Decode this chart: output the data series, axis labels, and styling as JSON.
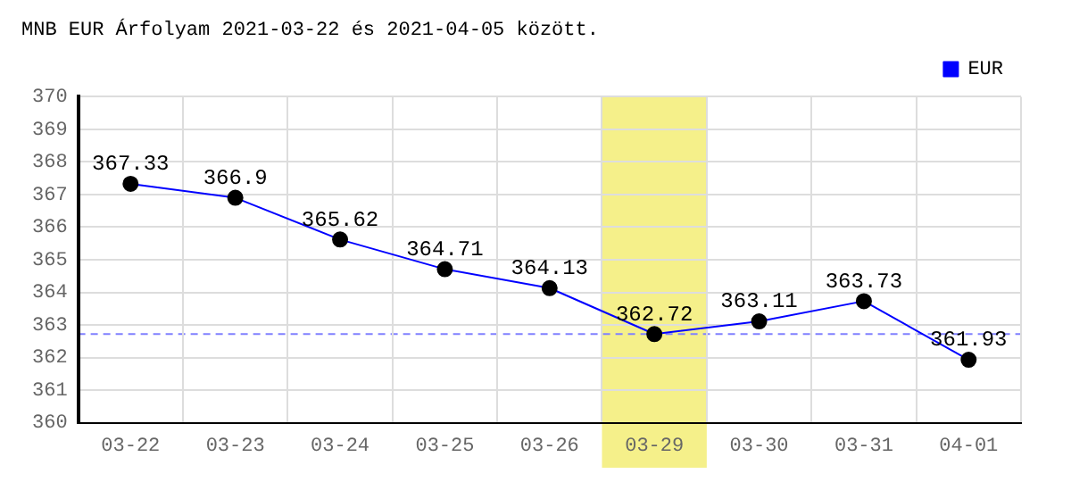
{
  "chart_data": {
    "type": "line",
    "title": "MNB EUR Árfolyam 2021-03-22 és 2021-04-05 között.",
    "categories": [
      "03-22",
      "03-23",
      "03-24",
      "03-25",
      "03-26",
      "03-29",
      "03-30",
      "03-31",
      "04-01"
    ],
    "series": [
      {
        "name": "EUR",
        "color": "#0000ff",
        "values": [
          367.33,
          366.9,
          365.62,
          364.71,
          364.13,
          362.72,
          363.11,
          363.73,
          361.93
        ]
      }
    ],
    "ylim": [
      360,
      370
    ],
    "yticks": [
      360,
      361,
      362,
      363,
      364,
      365,
      366,
      367,
      368,
      369,
      370
    ],
    "grid": true,
    "legend": "top right",
    "marker": "circle",
    "line_style": "solid",
    "data_labels": true,
    "ref_lines": [
      {
        "axis": "y",
        "value": 362.72,
        "color": "#8080ff",
        "line_style": "dashed"
      }
    ],
    "bands": [
      {
        "axis": "x",
        "from": "03-29",
        "to": "03-29",
        "color": "#f5f08a"
      }
    ]
  }
}
